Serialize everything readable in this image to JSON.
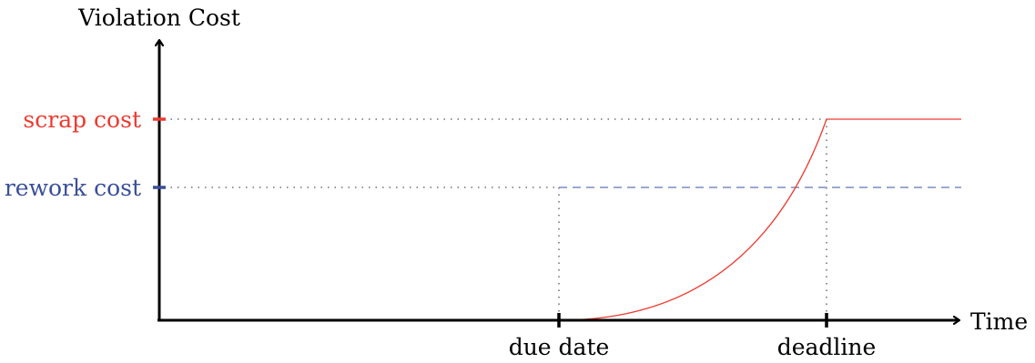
{
  "axes": {
    "y_label": "Violation Cost",
    "x_label": "Time"
  },
  "y_levels": {
    "scrap": {
      "label": "scrap cost",
      "color": "#ee3a30"
    },
    "rework": {
      "label": "rework cost",
      "color": "#3a4f9a"
    }
  },
  "x_marks": {
    "due_date": {
      "label": "due date"
    },
    "deadline": {
      "label": "deadline"
    }
  },
  "curve": {
    "color": "#ee3a30",
    "shape": "quadratic rise from due date to deadline, then flat at scrap cost"
  }
}
